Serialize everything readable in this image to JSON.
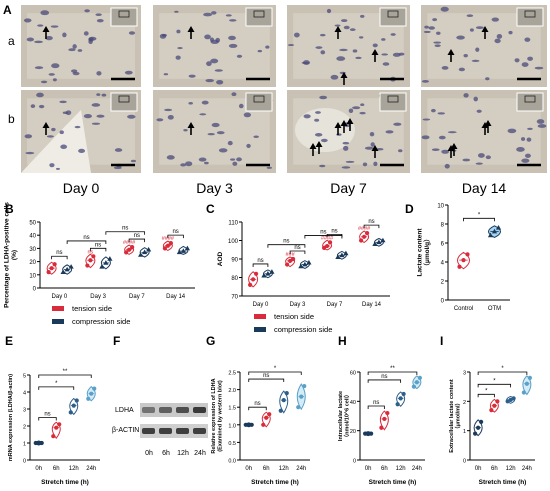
{
  "panel_letters": {
    "A": "A",
    "a": "a",
    "b": "b",
    "B": "B",
    "C": "C",
    "D": "D",
    "E": "E",
    "F": "F",
    "G": "G",
    "H": "H",
    "I": "I"
  },
  "histology": {
    "day_labels": [
      "Day 0",
      "Day 3",
      "Day 7",
      "Day 14"
    ],
    "arrow_counts": {
      "row_a": [
        1,
        1,
        3,
        2
      ],
      "row_b": [
        1,
        1,
        6,
        4
      ]
    }
  },
  "colors": {
    "tension": "#d92b3a",
    "compression": "#1a3a5c",
    "control": "#d92b3a",
    "otm": "#1a3a5c",
    "sig_red": "#d92b3a",
    "g0": "#1a3a5c",
    "g6": "#d92b3a",
    "g12": "#2e5f8a",
    "g24": "#5aa0c8"
  },
  "chart_data": [
    {
      "id": "B",
      "type": "violin",
      "ylabel": "Percentage of LDHA-positive cells\n(%)",
      "ylim": [
        0,
        50
      ],
      "yticks": [
        0,
        10,
        20,
        30,
        40,
        50
      ],
      "categories": [
        "Day 0",
        "Day 3",
        "Day 7",
        "Day 14"
      ],
      "legend": [
        "tension side",
        "compression side"
      ],
      "legend_placement": "bottom",
      "series": [
        {
          "name": "tension side",
          "values": [
            [
              12,
              15,
              18
            ],
            [
              17,
              21,
              24
            ],
            [
              27,
              29,
              31
            ],
            [
              30,
              32,
              34
            ]
          ]
        },
        {
          "name": "compression side",
          "values": [
            [
              12,
              14,
              16
            ],
            [
              16,
              19,
              22
            ],
            [
              25,
              27,
              29
            ],
            [
              27,
              28,
              30
            ]
          ]
        }
      ],
      "stars_above_tension": [
        "",
        "ns",
        "####",
        "####"
      ],
      "comparisons": [
        {
          "text": "ns"
        },
        {
          "text": "ns"
        },
        {
          "text": "ns"
        },
        {
          "text": "ns"
        },
        {
          "text": "ns"
        },
        {
          "text": "ns"
        }
      ]
    },
    {
      "id": "C",
      "type": "violin",
      "ylabel": "AOD",
      "ylim": [
        70,
        110
      ],
      "yticks": [
        70,
        80,
        90,
        100,
        110
      ],
      "categories": [
        "Day 0",
        "Day 3",
        "Day 7",
        "Day 14"
      ],
      "legend": [
        "tension side",
        "compression side"
      ],
      "legend_placement": "bottom",
      "series": [
        {
          "name": "tension side",
          "values": [
            [
              76,
              79,
              82
            ],
            [
              87,
              89,
              90
            ],
            [
              96,
              97,
              99
            ],
            [
              100,
              102,
              104
            ]
          ]
        },
        {
          "name": "compression side",
          "values": [
            [
              81,
              82,
              83
            ],
            [
              86,
              87,
              88
            ],
            [
              91,
              92,
              93
            ],
            [
              98,
              99,
              100
            ]
          ]
        }
      ],
      "stars_above_tension": [
        "",
        "###",
        "####",
        "####"
      ],
      "comparisons": [
        {
          "text": "ns"
        },
        {
          "text": "ns"
        },
        {
          "text": "ns"
        },
        {
          "text": "ns"
        },
        {
          "text": "ns"
        },
        {
          "text": "ns"
        }
      ]
    },
    {
      "id": "D",
      "type": "violin",
      "ylabel": "Lactate content\n（μmol/g）",
      "ylim": [
        0,
        10
      ],
      "yticks": [
        0,
        2,
        4,
        6,
        8,
        10
      ],
      "categories": [
        "Control",
        "OTM"
      ],
      "values": [
        [
          3.5,
          4.2,
          4.8
        ],
        [
          6.8,
          7.2,
          7.6
        ]
      ],
      "sig": "*"
    },
    {
      "id": "E",
      "type": "violin",
      "ylabel": "mRNA expression (LDHA/β-actin)",
      "xlabel": "Stretch time (h)",
      "ylim": [
        0,
        5
      ],
      "yticks": [
        0,
        1,
        2,
        3,
        4,
        5
      ],
      "categories": [
        "0h",
        "6h",
        "12h",
        "24h"
      ],
      "values": [
        [
          1,
          1,
          1
        ],
        [
          1.4,
          1.9,
          2.1
        ],
        [
          2.8,
          3.2,
          3.5
        ],
        [
          3.6,
          3.9,
          4.2
        ]
      ],
      "sig": [
        "ns",
        "*",
        "**"
      ]
    },
    {
      "id": "G",
      "type": "violin",
      "ylabel": "Relative expression of LDHA\n(Examined by western blot)",
      "xlabel": "Stretch time (h)",
      "ylim": [
        0,
        2.5
      ],
      "yticks": [
        0.0,
        0.5,
        1.0,
        1.5,
        2.0,
        2.5
      ],
      "categories": [
        "0h",
        "6h",
        "12h",
        "24h"
      ],
      "values": [
        [
          1,
          1,
          1
        ],
        [
          1.0,
          1.2,
          1.3
        ],
        [
          1.4,
          1.7,
          1.9
        ],
        [
          1.5,
          1.8,
          2.1
        ]
      ],
      "sig": [
        "ns",
        "ns",
        "*"
      ]
    },
    {
      "id": "H",
      "type": "violin",
      "ylabel": "Intracellular lactate\n（nmol/10^6 cell）",
      "xlabel": "Stretch time (h)",
      "ylim": [
        0,
        60
      ],
      "yticks": [
        0,
        20,
        40,
        60
      ],
      "categories": [
        "0h",
        "6h",
        "12h",
        "24h"
      ],
      "values": [
        [
          18,
          18,
          18
        ],
        [
          22,
          28,
          32
        ],
        [
          38,
          42,
          45
        ],
        [
          50,
          53,
          56
        ]
      ],
      "sig": [
        "ns",
        "ns",
        "**"
      ]
    },
    {
      "id": "I",
      "type": "violin",
      "ylabel": "Extracellular lactate content\n（μmol/ml）",
      "xlabel": "Stretch time (h)",
      "ylim": [
        0,
        3
      ],
      "yticks": [
        0,
        1,
        2,
        3
      ],
      "categories": [
        "0h",
        "6h",
        "12h",
        "24h"
      ],
      "values": [
        [
          0.9,
          1.1,
          1.3
        ],
        [
          1.7,
          1.85,
          2.0
        ],
        [
          2.0,
          2.05,
          2.1
        ],
        [
          2.3,
          2.6,
          2.8
        ]
      ],
      "sig": [
        "*",
        "*",
        "*"
      ]
    }
  ],
  "western_blot": {
    "rows": [
      "LDHA",
      "β-ACTIN"
    ],
    "lanes": [
      "0h",
      "6h",
      "12h",
      "24h"
    ]
  }
}
